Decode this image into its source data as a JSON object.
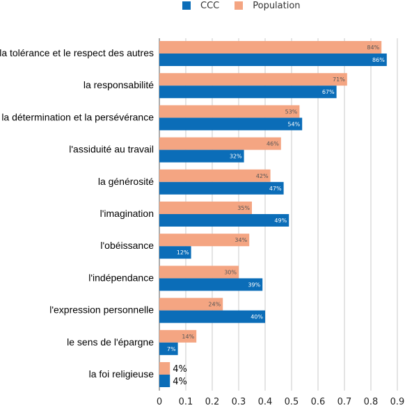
{
  "chart_data": {
    "type": "bar",
    "orientation": "horizontal",
    "categories": [
      "la tolérance et le respect des autres",
      "la responsabilité",
      "la détermination et la persévérance",
      "l'assiduité au travail",
      "la générosité",
      "l'imagination",
      "l'obéissance",
      "l'indépendance",
      "l'expression personnelle",
      "le sens de l'épargne",
      "la foi religieuse"
    ],
    "series": [
      {
        "name": "CCC",
        "color": "#0b6db8",
        "values": [
          0.86,
          0.67,
          0.54,
          0.32,
          0.47,
          0.49,
          0.12,
          0.39,
          0.4,
          0.07,
          0.04
        ],
        "labels": [
          "86%",
          "67%",
          "54%",
          "32%",
          "47%",
          "49%",
          "12%",
          "39%",
          "40%",
          "7%",
          "4%"
        ]
      },
      {
        "name": "Population",
        "color": "#f4a582",
        "values": [
          0.84,
          0.71,
          0.53,
          0.46,
          0.42,
          0.35,
          0.34,
          0.3,
          0.24,
          0.14,
          0.04
        ],
        "labels": [
          "84%",
          "71%",
          "53%",
          "46%",
          "42%",
          "35%",
          "34%",
          "30%",
          "24%",
          "14%",
          "4%"
        ]
      }
    ],
    "xlim": [
      0,
      0.9
    ],
    "xticks": [
      "0",
      "0.1",
      "0.2",
      "0.3",
      "0.4",
      "0.5",
      "0.6",
      "0.7",
      "0.8",
      "0.9"
    ],
    "grid": "vertical",
    "legend": "top",
    "title": "",
    "xlabel": "",
    "ylabel": ""
  }
}
